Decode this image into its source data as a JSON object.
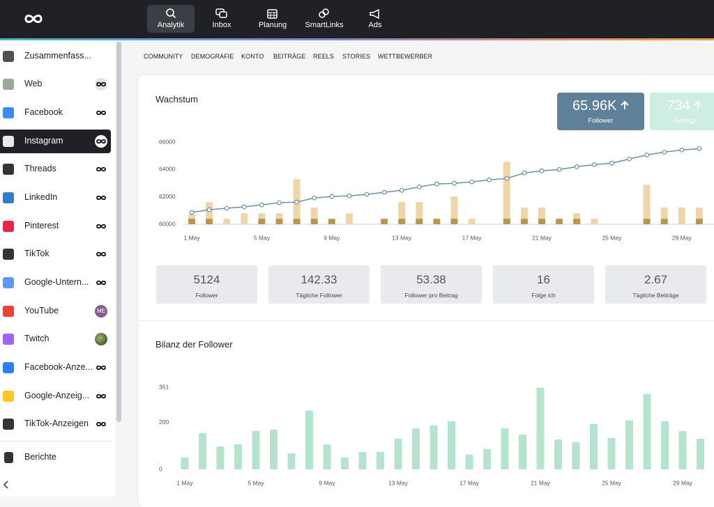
{
  "nav": {
    "items": [
      "Analytik",
      "Inbox",
      "Planung",
      "SmartLinks",
      "Ads"
    ],
    "active": 0
  },
  "sidebar": {
    "items": [
      {
        "label": "Zusammenfass..."
      },
      {
        "label": "Web"
      },
      {
        "label": "Facebook"
      },
      {
        "label": "Instagram"
      },
      {
        "label": "Threads"
      },
      {
        "label": "LinkedIn"
      },
      {
        "label": "Pinterest"
      },
      {
        "label": "TikTok"
      },
      {
        "label": "Google-Untern..."
      },
      {
        "label": "YouTube",
        "badge": "ME"
      },
      {
        "label": "Twitch"
      },
      {
        "label": "Facebook-Anze..."
      },
      {
        "label": "Google-Anzeig..."
      },
      {
        "label": "TikTok-Anzeigen"
      }
    ],
    "active": 3,
    "footer": "Berichte"
  },
  "tabs": [
    "COMMUNITY",
    "DEMOGRAFIE",
    "KONTO",
    "BEITRÄGE",
    "REELS",
    "STORIES",
    "WETTBEWERBER"
  ],
  "kpis": [
    {
      "value": "65.96K",
      "label": "Follower"
    },
    {
      "value": "734",
      "label": "Gefolgt"
    }
  ],
  "stats": [
    {
      "value": 5124,
      "label": "Follower"
    },
    {
      "value": 142.33,
      "label": "Tägliche Follower"
    },
    {
      "value": 53.38,
      "label": "Follower pro Beitrag"
    },
    {
      "value": 16,
      "label": "Folge ich"
    },
    {
      "value": 2.67,
      "label": "Tägliche Beiträge"
    }
  ],
  "chart_data": [
    {
      "type": "line",
      "title": "Wachstum",
      "categories": [
        "1 May",
        null,
        null,
        null,
        "5 May",
        null,
        null,
        null,
        "9 May",
        null,
        null,
        null,
        "13 May",
        null,
        null,
        null,
        "17 May",
        null,
        null,
        null,
        "21 May",
        null,
        null,
        null,
        "25 May",
        null,
        null,
        null,
        "29 May",
        null
      ],
      "series": [
        {
          "type": "bar",
          "color": "#eed6aa",
          "values": [
            60710,
            61620,
            60400,
            60810,
            60810,
            60810,
            63290,
            61220,
            null,
            60810,
            null,
            null,
            61620,
            61620,
            null,
            62030,
            60400,
            null,
            64560,
            61220,
            61220,
            null,
            60810,
            60400,
            null,
            null,
            62890,
            61220,
            61220,
            61220
          ]
        },
        {
          "type": "bar",
          "color": "#b8964f",
          "values": [
            60400,
            60400,
            null,
            null,
            60400,
            60400,
            60400,
            60400,
            60400,
            null,
            null,
            60400,
            60400,
            60400,
            60400,
            60400,
            null,
            null,
            60400,
            60400,
            60400,
            60400,
            60400,
            null,
            null,
            null,
            60400,
            60400,
            null,
            60400
          ]
        },
        {
          "type": "line",
          "color": "#6e8ea3",
          "values": [
            60860,
            61060,
            61170,
            61270,
            61420,
            61570,
            61620,
            61920,
            62030,
            62080,
            62180,
            62330,
            62480,
            62730,
            62940,
            62990,
            63090,
            63240,
            63340,
            63750,
            63900,
            64000,
            64200,
            64350,
            64460,
            64760,
            65060,
            65270,
            65420,
            65520
          ]
        }
      ],
      "ylim": [
        60000,
        66000
      ],
      "yticks": [
        60000,
        62000,
        64000,
        66000
      ],
      "grid": false
    },
    {
      "type": "bar",
      "title": "Bilanz der Follower",
      "categories": [
        "1 May",
        null,
        null,
        null,
        "5 May",
        null,
        null,
        null,
        "9 May",
        null,
        null,
        null,
        "13 May",
        null,
        null,
        null,
        "17 May",
        null,
        null,
        null,
        "21 May",
        null,
        null,
        null,
        "25 May",
        null,
        null,
        null,
        "29 May",
        null
      ],
      "values": [
        51,
        155,
        98,
        107,
        164,
        170,
        69,
        251,
        107,
        51,
        75,
        75,
        131,
        176,
        188,
        206,
        63,
        87,
        176,
        149,
        349,
        128,
        116,
        194,
        134,
        209,
        322,
        206,
        164,
        131
      ],
      "color": "#b6e3cd",
      "ylim": [
        0,
        351
      ],
      "yticks": [
        0,
        200,
        351
      ],
      "grid": false
    }
  ]
}
